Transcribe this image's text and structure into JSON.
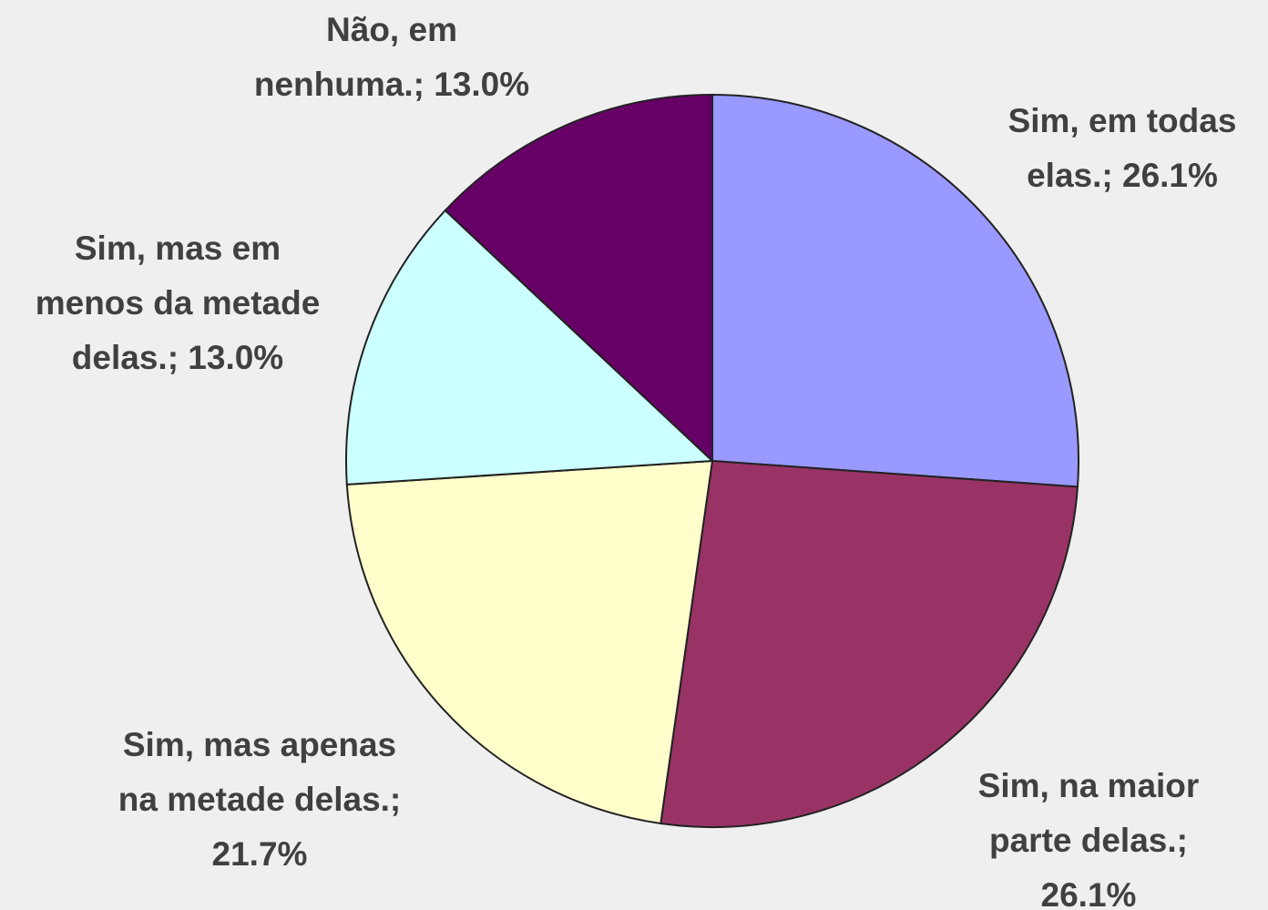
{
  "chart_data": {
    "type": "pie",
    "values": [
      26.1,
      26.1,
      21.7,
      13.0,
      13.0
    ],
    "value_labels": [
      "Sim, em todas elas.; 26.1%",
      "Sim, na maior parte delas.; 26.1%",
      "Sim, mas apenas na metade delas.; 21.7%",
      "Sim, mas em menos da metade delas.; 13.0%",
      "Não, em nenhuma.; 13.0%"
    ],
    "colors": [
      "#9999ff",
      "#993366",
      "#ffffcc",
      "#ccffff",
      "#660066"
    ]
  }
}
